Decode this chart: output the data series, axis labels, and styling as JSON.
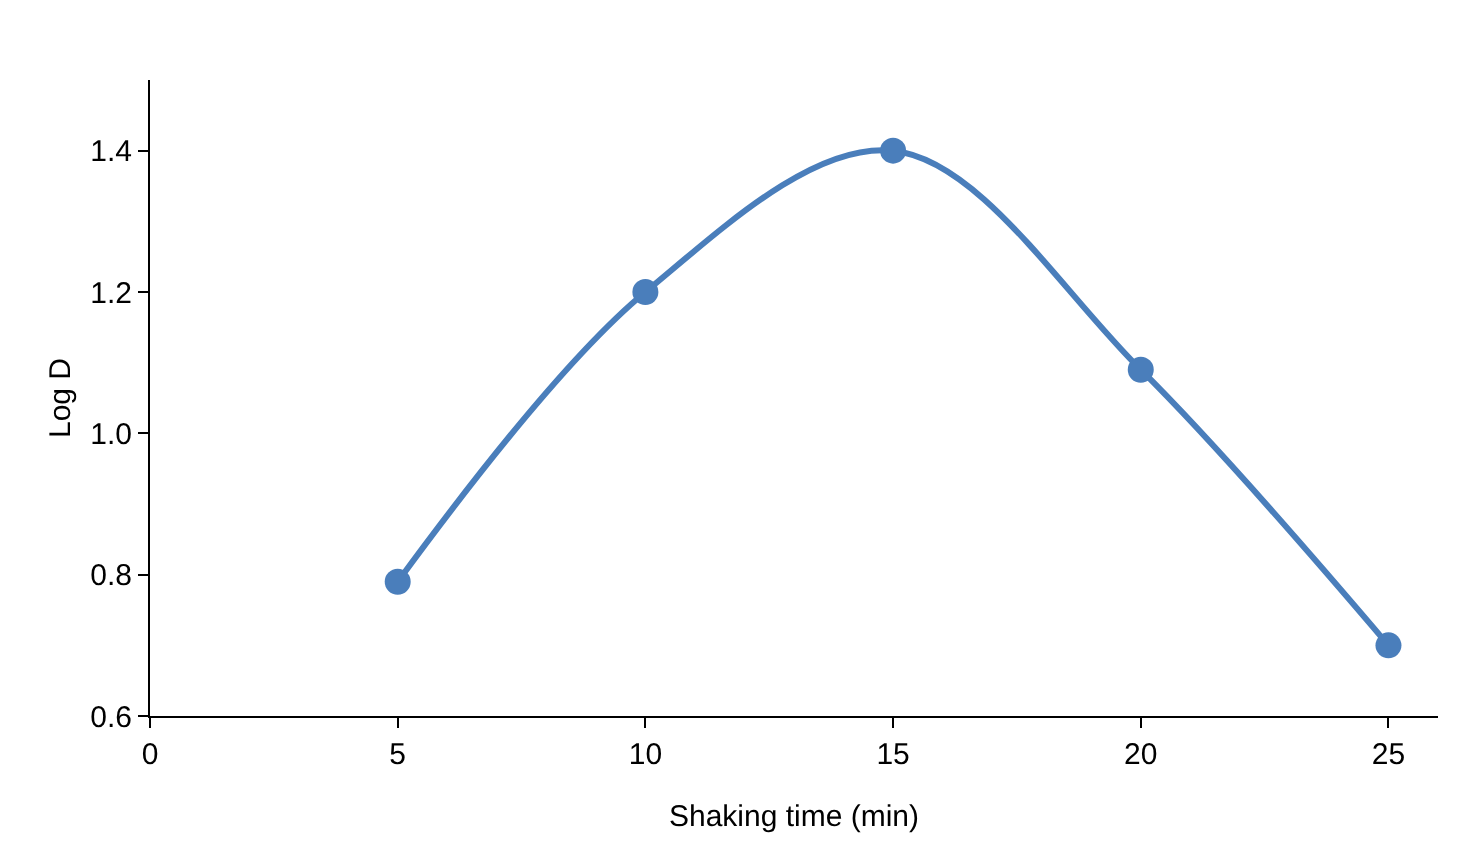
{
  "chart_data": {
    "type": "line",
    "xlabel": "Shaking time (min)",
    "ylabel": "Log D",
    "x": [
      5,
      10,
      15,
      20,
      25
    ],
    "series": [
      {
        "color": "#4a7ebb",
        "values": [
          0.79,
          1.2,
          1.4,
          1.09,
          0.7
        ]
      }
    ],
    "xlim": [
      0,
      26
    ],
    "xticks": [
      0,
      5,
      10,
      15,
      20,
      25
    ],
    "ylim": [
      0.6,
      1.5
    ],
    "yticks": [
      {
        "value": 0.6,
        "label": "0.6"
      },
      {
        "value": 0.8,
        "label": "0.8"
      },
      {
        "value": 1.0,
        "label": "1.0"
      },
      {
        "value": 1.2,
        "label": "1.2"
      },
      {
        "value": 1.4,
        "label": "1.4"
      }
    ],
    "grid": false,
    "legend": false,
    "marker": "circle",
    "line_style": "solid"
  }
}
